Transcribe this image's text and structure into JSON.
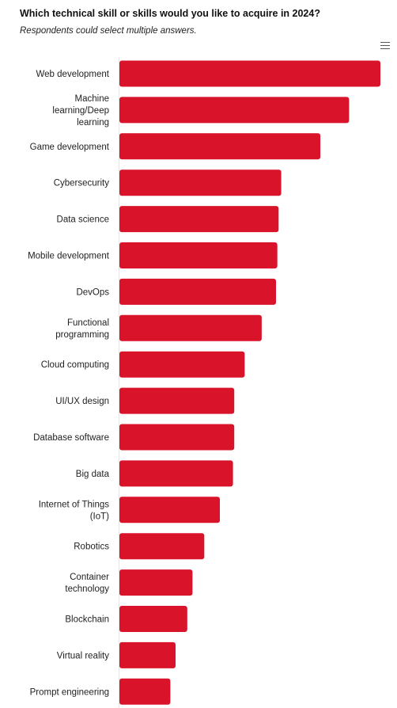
{
  "chart_data": {
    "type": "bar",
    "orientation": "horizontal",
    "title": "Which technical skill or skills would you like to acquire in 2024?",
    "subtitle": "Respondents could select multiple answers.",
    "categories": [
      "Web development",
      "Machine learning/Deep learning",
      "Game development",
      "Cybersecurity",
      "Data science",
      "Mobile development",
      "DevOps",
      "Functional programming",
      "Cloud computing",
      "UI/UX design",
      "Database software",
      "Big data",
      "Internet of Things (IoT)",
      "Robotics",
      "Container technology",
      "Blockchain",
      "Virtual reality",
      "Prompt engineering"
    ],
    "values": [
      100,
      88,
      77,
      62,
      61,
      60.5,
      60,
      54.5,
      48,
      44,
      44,
      43.5,
      38.5,
      32.5,
      28,
      26,
      21.5,
      19.5
    ],
    "xlim": [
      0,
      100
    ],
    "grid": false,
    "legend": "none",
    "bar_color": "#d8132a"
  },
  "menu_icon": "hamburger-menu-icon"
}
